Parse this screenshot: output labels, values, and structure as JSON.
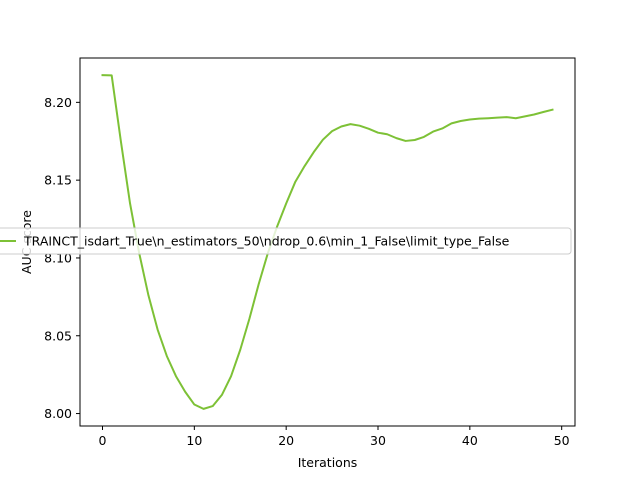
{
  "chart_data": {
    "type": "line",
    "xlabel": "Iterations",
    "ylabel": "AUC score",
    "xlim": [
      -2.45,
      51.45
    ],
    "ylim": [
      7.992,
      8.2285
    ],
    "x_ticks": [
      0,
      10,
      20,
      30,
      40,
      50
    ],
    "y_ticks": [
      8.0,
      8.05,
      8.1,
      8.15,
      8.2
    ],
    "x_tick_labels": [
      "0",
      "10",
      "20",
      "30",
      "40",
      "50"
    ],
    "y_tick_labels": [
      "8.00",
      "8.05",
      "8.10",
      "8.15",
      "8.20"
    ],
    "grid": false,
    "legend_position": "center-left",
    "series": [
      {
        "name": "TRAINCT_isdart_True\\n_estimators_50\\ndrop_0.6\\min_1_False\\limit_type_False",
        "color": "#7dc136",
        "x": [
          0,
          1,
          2,
          3,
          4,
          5,
          6,
          7,
          8,
          9,
          10,
          11,
          12,
          13,
          14,
          15,
          16,
          17,
          18,
          19,
          20,
          21,
          22,
          23,
          24,
          25,
          26,
          27,
          28,
          29,
          30,
          31,
          32,
          33,
          34,
          35,
          36,
          37,
          38,
          39,
          40,
          41,
          42,
          43,
          44,
          45,
          46,
          47,
          48,
          49
        ],
        "values": [
          8.2175,
          8.2173,
          8.175,
          8.135,
          8.103,
          8.076,
          8.054,
          8.037,
          8.024,
          8.014,
          8.0058,
          8.003,
          8.0048,
          8.012,
          8.024,
          8.041,
          8.061,
          8.083,
          8.103,
          8.12,
          8.135,
          8.149,
          8.159,
          8.168,
          8.176,
          8.1815,
          8.1845,
          8.186,
          8.185,
          8.183,
          8.1805,
          8.1795,
          8.177,
          8.1752,
          8.1758,
          8.1778,
          8.1812,
          8.1832,
          8.1865,
          8.188,
          8.189,
          8.1895,
          8.1898,
          8.1902,
          8.1905,
          8.1898,
          8.191,
          8.1922,
          8.1938,
          8.1953
        ]
      }
    ]
  }
}
